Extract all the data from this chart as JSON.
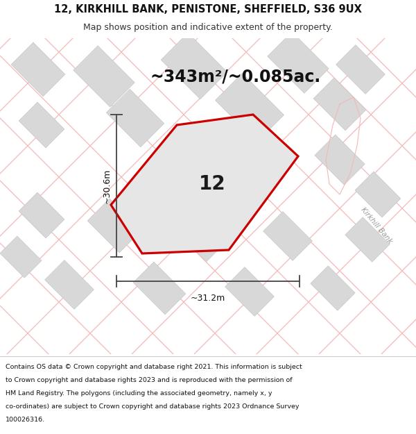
{
  "title_line1": "12, KIRKHILL BANK, PENISTONE, SHEFFIELD, S36 9UX",
  "title_line2": "Map shows position and indicative extent of the property.",
  "area_text": "~343m²/~0.085ac.",
  "property_number": "12",
  "dim_width_text": "~31.2m",
  "dim_height_text": "~30.6m",
  "footer_lines": [
    "Contains OS data © Crown copyright and database right 2021. This information is subject",
    "to Crown copyright and database rights 2023 and is reproduced with the permission of",
    "HM Land Registry. The polygons (including the associated geometry, namely x, y",
    "co-ordinates) are subject to Crown copyright and database rights 2023 Ordnance Survey",
    "100026316."
  ],
  "bg_color": "#ffffff",
  "map_bg": "#faf9f8",
  "property_fill": "#e6e6e6",
  "property_edge": "#cc0000",
  "road_color": "#f2b8b8",
  "building_color": "#d8d8d8",
  "building_edge": "#c8c8c8",
  "dim_line_color": "#444444",
  "road_label_color": "#aaaaaa",
  "title_fontsize": 10.5,
  "subtitle_fontsize": 9,
  "area_fontsize": 17,
  "number_fontsize": 20,
  "dim_fontsize": 9,
  "footer_fontsize": 6.8
}
